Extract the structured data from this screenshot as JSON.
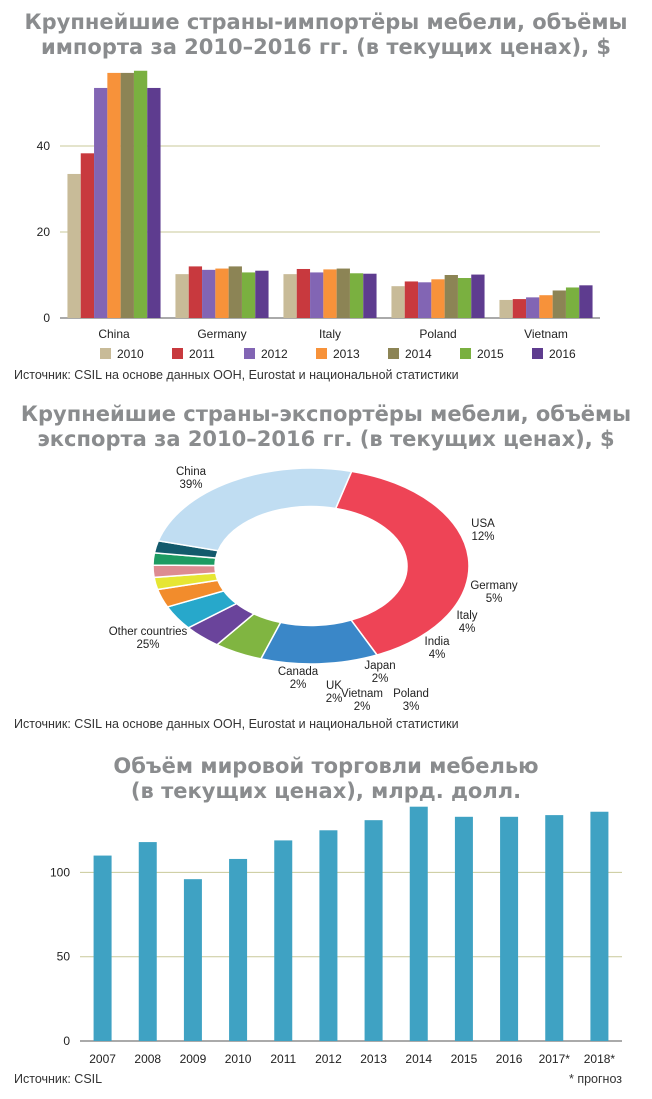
{
  "import_section": {
    "title_line1": "Крупнейшие страны-импортёры мебели, объёмы",
    "title_line2": "импорта за 2010–2016 гг. (в текущих ценах), $",
    "source": "Источник: CSIL на основе данных ООН, Eurostat и национальной статистики"
  },
  "export_section": {
    "title_line1": "Крупнейшие страны-экспортёры мебели, объёмы",
    "title_line2": "экспорта за 2010–2016 гг. (в текущих ценах), $",
    "source": "Источник: CSIL на основе данных ООН, Eurostat и национальной статистики"
  },
  "trade_section": {
    "title_line1": "Объём мировой торговли мебелью",
    "title_line2": "(в текущих ценах), млрд. долл.",
    "source": "Источник: CSIL",
    "note": "* прогноз"
  },
  "chart_data": [
    {
      "type": "bar",
      "categories": [
        "China",
        "Germany",
        "Italy",
        "Poland",
        "Vietnam"
      ],
      "series": [
        {
          "name": "2010",
          "color": "#c8bb98",
          "values": [
            33.5,
            10.2,
            10.2,
            7.4,
            4.2
          ]
        },
        {
          "name": "2011",
          "color": "#c8393e",
          "values": [
            38.3,
            12.0,
            11.4,
            8.5,
            4.4
          ]
        },
        {
          "name": "2012",
          "color": "#8265b4",
          "values": [
            53.5,
            11.2,
            10.6,
            8.3,
            4.8
          ]
        },
        {
          "name": "2013",
          "color": "#f7923a",
          "values": [
            57.0,
            11.5,
            11.3,
            9.0,
            5.3
          ]
        },
        {
          "name": "2014",
          "color": "#8c8455",
          "values": [
            57.0,
            12.0,
            11.5,
            10.0,
            6.4
          ]
        },
        {
          "name": "2015",
          "color": "#7ab040",
          "values": [
            57.5,
            10.6,
            10.4,
            9.3,
            7.1
          ]
        },
        {
          "name": "2016",
          "color": "#5e3c8f",
          "values": [
            53.5,
            11.0,
            10.3,
            10.1,
            7.6
          ]
        }
      ],
      "yticks": [
        0,
        20,
        40
      ],
      "ylim": [
        0,
        60
      ],
      "grid": true,
      "legend": "bottom"
    },
    {
      "type": "pie",
      "donut": true,
      "slices": [
        {
          "label": "China",
          "pct_label": "39%",
          "value": 39,
          "color": "#ee4456"
        },
        {
          "label": "USA",
          "pct_label": "12%",
          "value": 12,
          "color": "#3a87c8"
        },
        {
          "label": "Germany",
          "pct_label": "5%",
          "value": 5,
          "color": "#80b541"
        },
        {
          "label": "Italy",
          "pct_label": "4%",
          "value": 4,
          "color": "#6a449b"
        },
        {
          "label": "India",
          "pct_label": "4%",
          "value": 4,
          "color": "#27a8cb"
        },
        {
          "label": "Poland",
          "pct_label": "3%",
          "value": 3,
          "color": "#f28c2c"
        },
        {
          "label": "Japan",
          "pct_label": "2%",
          "value": 2,
          "color": "#e6e633"
        },
        {
          "label": "Vietnam",
          "pct_label": "2%",
          "value": 2,
          "color": "#dd8c91"
        },
        {
          "label": "UK",
          "pct_label": "2%",
          "value": 2,
          "color": "#1d9b62"
        },
        {
          "label": "Canada",
          "pct_label": "2%",
          "value": 2,
          "color": "#135a6c"
        },
        {
          "label": "Other countries",
          "pct_label": "25%",
          "value": 25,
          "color": "#c0ddf2"
        }
      ]
    },
    {
      "type": "bar",
      "categories": [
        "2007",
        "2008",
        "2009",
        "2010",
        "2011",
        "2012",
        "2013",
        "2014",
        "2015",
        "2016",
        "2017*",
        "2018*"
      ],
      "values": [
        110,
        118,
        96,
        108,
        119,
        125,
        131,
        139,
        133,
        133,
        134,
        136
      ],
      "color": "#3fa2c3",
      "yticks": [
        0,
        50,
        100
      ],
      "ylim": [
        0,
        140
      ],
      "grid": true
    }
  ]
}
